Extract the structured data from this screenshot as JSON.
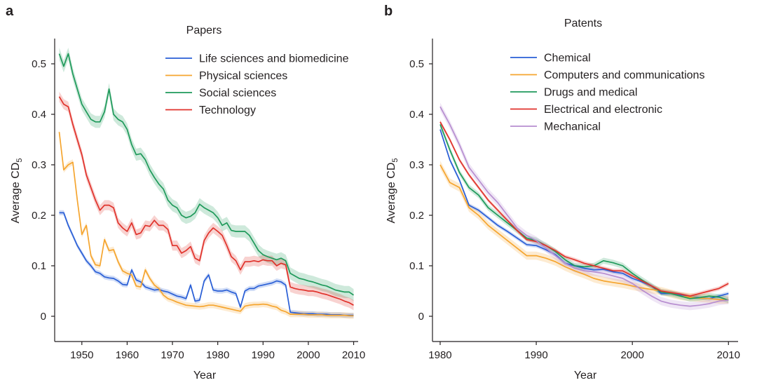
{
  "chart_data": [
    {
      "panel": "a",
      "type": "line",
      "title": "Papers",
      "xlabel": "Year",
      "ylabel": "Average CD",
      "ylabel_sub": "5",
      "xlim": [
        1944,
        2011
      ],
      "ylim": [
        -0.05,
        0.55
      ],
      "xticks": [
        1950,
        1960,
        1970,
        1980,
        1990,
        2000,
        2010
      ],
      "yticks": [
        0,
        0.1,
        0.2,
        0.3,
        0.4,
        0.5
      ],
      "ytick_labels": [
        "0",
        "0.1",
        "0.2",
        "0.3",
        "0.4",
        "0.5"
      ],
      "legend": "top-right",
      "grid": false,
      "series": [
        {
          "name": "Life sciences and biomedicine",
          "color": "#2a5fd6",
          "band": 0.005,
          "x": [
            1945,
            1946,
            1947,
            1948,
            1949,
            1950,
            1951,
            1952,
            1953,
            1954,
            1955,
            1956,
            1957,
            1958,
            1959,
            1960,
            1961,
            1962,
            1963,
            1964,
            1965,
            1966,
            1967,
            1968,
            1969,
            1970,
            1971,
            1972,
            1973,
            1974,
            1975,
            1976,
            1977,
            1978,
            1979,
            1980,
            1981,
            1982,
            1983,
            1984,
            1985,
            1986,
            1987,
            1988,
            1989,
            1990,
            1991,
            1992,
            1993,
            1994,
            1995,
            1996,
            1997,
            1998,
            1999,
            2000,
            2001,
            2002,
            2003,
            2004,
            2005,
            2006,
            2007,
            2008,
            2009,
            2010
          ],
          "values": [
            0.205,
            0.205,
            0.18,
            0.16,
            0.14,
            0.125,
            0.11,
            0.1,
            0.088,
            0.085,
            0.078,
            0.076,
            0.075,
            0.07,
            0.063,
            0.062,
            0.092,
            0.072,
            0.068,
            0.058,
            0.055,
            0.052,
            0.053,
            0.05,
            0.048,
            0.044,
            0.04,
            0.038,
            0.035,
            0.062,
            0.03,
            0.032,
            0.07,
            0.082,
            0.052,
            0.05,
            0.05,
            0.052,
            0.048,
            0.045,
            0.018,
            0.05,
            0.055,
            0.055,
            0.06,
            0.062,
            0.064,
            0.066,
            0.07,
            0.068,
            0.062,
            0.008,
            0.007,
            0.006,
            0.005,
            0.005,
            0.005,
            0.004,
            0.004,
            0.004,
            0.003,
            0.003,
            0.003,
            0.002,
            0.002,
            0.002
          ]
        },
        {
          "name": "Physical sciences",
          "color": "#f5a52f",
          "band": 0.006,
          "x": [
            1945,
            1946,
            1947,
            1948,
            1949,
            1950,
            1951,
            1952,
            1953,
            1954,
            1955,
            1956,
            1957,
            1958,
            1959,
            1960,
            1961,
            1962,
            1963,
            1964,
            1965,
            1966,
            1967,
            1968,
            1969,
            1970,
            1971,
            1972,
            1973,
            1974,
            1975,
            1976,
            1977,
            1978,
            1979,
            1980,
            1981,
            1982,
            1983,
            1984,
            1985,
            1986,
            1987,
            1988,
            1989,
            1990,
            1991,
            1992,
            1993,
            1994,
            1995,
            1996,
            1997,
            1998,
            1999,
            2000,
            2001,
            2002,
            2003,
            2004,
            2005,
            2006,
            2007,
            2008,
            2009,
            2010
          ],
          "values": [
            0.365,
            0.29,
            0.3,
            0.305,
            0.23,
            0.162,
            0.18,
            0.12,
            0.102,
            0.1,
            0.152,
            0.13,
            0.132,
            0.108,
            0.09,
            0.085,
            0.082,
            0.06,
            0.058,
            0.092,
            0.075,
            0.062,
            0.055,
            0.042,
            0.035,
            0.032,
            0.028,
            0.025,
            0.022,
            0.021,
            0.02,
            0.019,
            0.02,
            0.022,
            0.022,
            0.02,
            0.018,
            0.016,
            0.014,
            0.012,
            0.01,
            0.02,
            0.022,
            0.023,
            0.023,
            0.024,
            0.023,
            0.02,
            0.018,
            0.012,
            0.009,
            0.004,
            0.004,
            0.004,
            0.004,
            0.003,
            0.003,
            0.003,
            0.003,
            0.002,
            0.002,
            0.002,
            0.002,
            0.002,
            0.001,
            0.001
          ]
        },
        {
          "name": "Social sciences",
          "color": "#1f9a5b",
          "band": 0.012,
          "x": [
            1945,
            1946,
            1947,
            1948,
            1949,
            1950,
            1951,
            1952,
            1953,
            1954,
            1955,
            1956,
            1957,
            1958,
            1959,
            1960,
            1961,
            1962,
            1963,
            1964,
            1965,
            1966,
            1967,
            1968,
            1969,
            1970,
            1971,
            1972,
            1973,
            1974,
            1975,
            1976,
            1977,
            1978,
            1979,
            1980,
            1981,
            1982,
            1983,
            1984,
            1985,
            1986,
            1987,
            1988,
            1989,
            1990,
            1991,
            1992,
            1993,
            1994,
            1995,
            1996,
            1997,
            1998,
            1999,
            2000,
            2001,
            2002,
            2003,
            2004,
            2005,
            2006,
            2007,
            2008,
            2009,
            2010
          ],
          "values": [
            0.52,
            0.495,
            0.52,
            0.48,
            0.45,
            0.42,
            0.405,
            0.39,
            0.385,
            0.385,
            0.405,
            0.45,
            0.4,
            0.39,
            0.385,
            0.37,
            0.34,
            0.32,
            0.322,
            0.31,
            0.29,
            0.275,
            0.262,
            0.252,
            0.23,
            0.22,
            0.215,
            0.2,
            0.195,
            0.198,
            0.205,
            0.222,
            0.215,
            0.21,
            0.205,
            0.195,
            0.18,
            0.185,
            0.17,
            0.168,
            0.168,
            0.168,
            0.16,
            0.145,
            0.13,
            0.122,
            0.118,
            0.115,
            0.112,
            0.115,
            0.11,
            0.085,
            0.08,
            0.075,
            0.073,
            0.07,
            0.068,
            0.065,
            0.062,
            0.06,
            0.056,
            0.052,
            0.05,
            0.048,
            0.048,
            0.042
          ]
        },
        {
          "name": "Technology",
          "color": "#e0322b",
          "band": 0.01,
          "x": [
            1945,
            1946,
            1947,
            1948,
            1949,
            1950,
            1951,
            1952,
            1953,
            1954,
            1955,
            1956,
            1957,
            1958,
            1959,
            1960,
            1961,
            1962,
            1963,
            1964,
            1965,
            1966,
            1967,
            1968,
            1969,
            1970,
            1971,
            1972,
            1973,
            1974,
            1975,
            1976,
            1977,
            1978,
            1979,
            1980,
            1981,
            1982,
            1983,
            1984,
            1985,
            1986,
            1987,
            1988,
            1989,
            1990,
            1991,
            1992,
            1993,
            1994,
            1995,
            1996,
            1997,
            1998,
            1999,
            2000,
            2001,
            2002,
            2003,
            2004,
            2005,
            2006,
            2007,
            2008,
            2009,
            2010
          ],
          "values": [
            0.435,
            0.42,
            0.415,
            0.38,
            0.35,
            0.32,
            0.28,
            0.255,
            0.23,
            0.21,
            0.22,
            0.22,
            0.215,
            0.185,
            0.175,
            0.168,
            0.185,
            0.162,
            0.165,
            0.18,
            0.178,
            0.19,
            0.18,
            0.18,
            0.172,
            0.14,
            0.14,
            0.125,
            0.13,
            0.138,
            0.115,
            0.11,
            0.15,
            0.165,
            0.175,
            0.168,
            0.16,
            0.14,
            0.118,
            0.11,
            0.092,
            0.108,
            0.108,
            0.11,
            0.108,
            0.112,
            0.11,
            0.11,
            0.1,
            0.105,
            0.102,
            0.058,
            0.055,
            0.053,
            0.052,
            0.05,
            0.05,
            0.048,
            0.045,
            0.043,
            0.04,
            0.037,
            0.034,
            0.03,
            0.027,
            0.022
          ]
        }
      ]
    },
    {
      "panel": "b",
      "type": "line",
      "title": "Patents",
      "xlabel": "Year",
      "ylabel": "Average CD",
      "ylabel_sub": "5",
      "xlim": [
        1979.2,
        2011
      ],
      "ylim": [
        -0.05,
        0.55
      ],
      "xticks": [
        1980,
        1990,
        2000,
        2010
      ],
      "yticks": [
        0,
        0.1,
        0.2,
        0.3,
        0.4,
        0.5
      ],
      "ytick_labels": [
        "0",
        "0.1",
        "0.2",
        "0.3",
        "0.4",
        "0.5"
      ],
      "legend": "top-right",
      "grid": false,
      "series": [
        {
          "name": "Chemical",
          "color": "#2a5fd6",
          "band": 0.004,
          "x": [
            1980,
            1981,
            1982,
            1983,
            1984,
            1985,
            1986,
            1987,
            1988,
            1989,
            1990,
            1991,
            1992,
            1993,
            1994,
            1995,
            1996,
            1997,
            1998,
            1999,
            2000,
            2001,
            2002,
            2003,
            2004,
            2005,
            2006,
            2007,
            2008,
            2009,
            2010
          ],
          "values": [
            0.37,
            0.31,
            0.27,
            0.22,
            0.21,
            0.195,
            0.18,
            0.168,
            0.155,
            0.142,
            0.14,
            0.132,
            0.122,
            0.105,
            0.1,
            0.095,
            0.092,
            0.093,
            0.088,
            0.085,
            0.075,
            0.068,
            0.06,
            0.045,
            0.045,
            0.042,
            0.038,
            0.037,
            0.035,
            0.04,
            0.045
          ]
        },
        {
          "name": "Computers and communications",
          "color": "#f5a52f",
          "band": 0.008,
          "x": [
            1980,
            1981,
            1982,
            1983,
            1984,
            1985,
            1986,
            1987,
            1988,
            1989,
            1990,
            1991,
            1992,
            1993,
            1994,
            1995,
            1996,
            1997,
            1998,
            1999,
            2000,
            2001,
            2002,
            2003,
            2004,
            2005,
            2006,
            2007,
            2008,
            2009,
            2010
          ],
          "values": [
            0.3,
            0.265,
            0.255,
            0.215,
            0.2,
            0.18,
            0.165,
            0.15,
            0.135,
            0.12,
            0.12,
            0.115,
            0.108,
            0.098,
            0.09,
            0.083,
            0.075,
            0.07,
            0.067,
            0.064,
            0.06,
            0.056,
            0.053,
            0.05,
            0.045,
            0.04,
            0.038,
            0.036,
            0.035,
            0.033,
            0.033
          ]
        },
        {
          "name": "Drugs and medical",
          "color": "#1f9a5b",
          "band": 0.006,
          "x": [
            1980,
            1981,
            1982,
            1983,
            1984,
            1985,
            1986,
            1987,
            1988,
            1989,
            1990,
            1991,
            1992,
            1993,
            1994,
            1995,
            1996,
            1997,
            1998,
            1999,
            2000,
            2001,
            2002,
            2003,
            2004,
            2005,
            2006,
            2007,
            2008,
            2009,
            2010
          ],
          "values": [
            0.38,
            0.33,
            0.285,
            0.255,
            0.24,
            0.215,
            0.2,
            0.185,
            0.17,
            0.155,
            0.15,
            0.14,
            0.128,
            0.112,
            0.1,
            0.098,
            0.1,
            0.11,
            0.106,
            0.1,
            0.085,
            0.072,
            0.06,
            0.048,
            0.045,
            0.04,
            0.035,
            0.037,
            0.04,
            0.038,
            0.032
          ]
        },
        {
          "name": "Electrical and electronic",
          "color": "#e0322b",
          "band": 0.004,
          "x": [
            1980,
            1981,
            1982,
            1983,
            1984,
            1985,
            1986,
            1987,
            1988,
            1989,
            1990,
            1991,
            1992,
            1993,
            1994,
            1995,
            1996,
            1997,
            1998,
            1999,
            2000,
            2001,
            2002,
            2003,
            2004,
            2005,
            2006,
            2007,
            2008,
            2009,
            2010
          ],
          "values": [
            0.385,
            0.35,
            0.31,
            0.28,
            0.255,
            0.23,
            0.21,
            0.19,
            0.17,
            0.152,
            0.148,
            0.14,
            0.13,
            0.118,
            0.112,
            0.105,
            0.1,
            0.095,
            0.09,
            0.09,
            0.08,
            0.07,
            0.06,
            0.05,
            0.047,
            0.044,
            0.04,
            0.045,
            0.05,
            0.055,
            0.065
          ]
        },
        {
          "name": "Mechanical",
          "color": "#b78ed0",
          "band": 0.008,
          "x": [
            1980,
            1981,
            1982,
            1983,
            1984,
            1985,
            1986,
            1987,
            1988,
            1989,
            1990,
            1991,
            1992,
            1993,
            1994,
            1995,
            1996,
            1997,
            1998,
            1999,
            2000,
            2001,
            2002,
            2003,
            2004,
            2005,
            2006,
            2007,
            2008,
            2009,
            2010
          ],
          "values": [
            0.415,
            0.38,
            0.34,
            0.295,
            0.27,
            0.245,
            0.225,
            0.2,
            0.175,
            0.16,
            0.15,
            0.135,
            0.12,
            0.105,
            0.095,
            0.09,
            0.088,
            0.085,
            0.08,
            0.075,
            0.065,
            0.052,
            0.04,
            0.03,
            0.025,
            0.022,
            0.02,
            0.022,
            0.025,
            0.03,
            0.032
          ]
        }
      ]
    }
  ]
}
